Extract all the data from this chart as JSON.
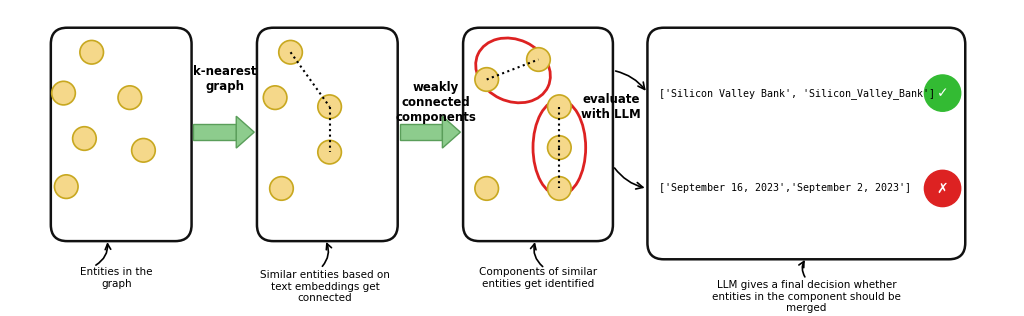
{
  "bg_color": "#ffffff",
  "node_color": "#f5d88a",
  "node_edge_color": "#c8a820",
  "box_edge_color": "#111111",
  "box_face_color": "#ffffff",
  "arrow_color": "#8dcc8d",
  "arrow_edge_color": "#5a9e5a",
  "red_ellipse_color": "#dd2222",
  "green_circle_color": "#33bb33",
  "red_cross_color": "#dd2222",
  "figw": 10.24,
  "figh": 3.16,
  "svb_text": "['Silicon Valley Bank', 'Silicon_Valley_Bank']",
  "sep_text": "['September 16, 2023','September 2, 2023']",
  "caption1": "Entities in the\ngraph",
  "caption2": "Similar entities based on\ntext embeddings get\nconnected",
  "caption3": "Components of similar\nentities get identified",
  "caption4": "LLM gives a final decision whether\nentities in the component should be\nmerged",
  "label_knearest": "k-nearest\ngraph",
  "label_weakly": "weakly\nconnected\ncomponents",
  "label_evaluate": "evaluate\nwith LLM"
}
